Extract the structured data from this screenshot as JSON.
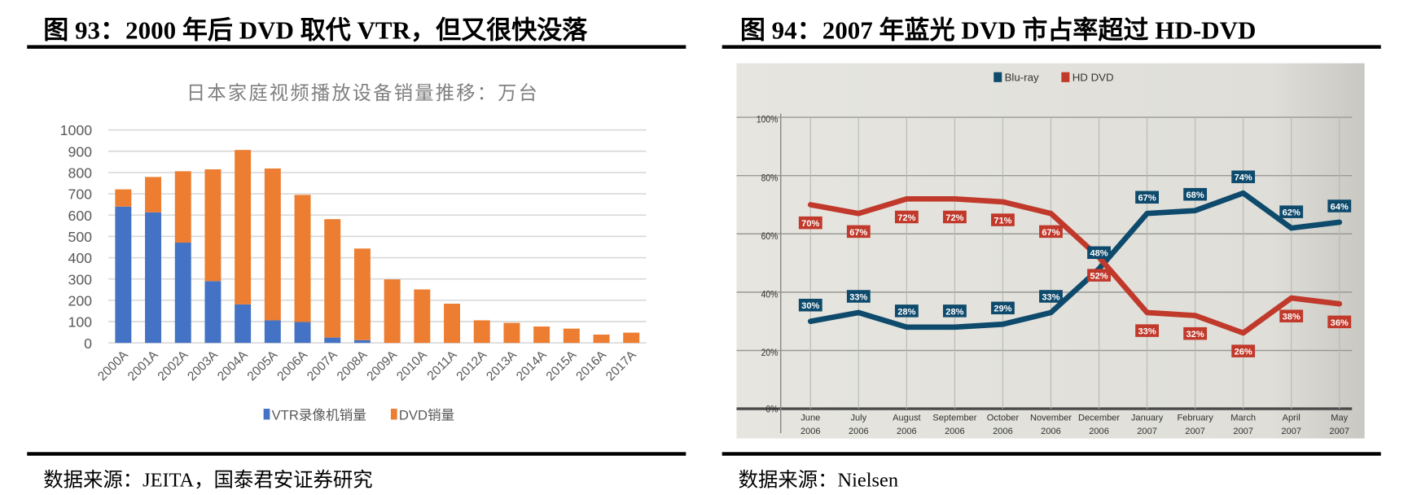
{
  "left_figure": {
    "title": "图 93：2000 年后 DVD 取代 VTR，但又很快没落",
    "source": "数据来源：JEITA，国泰君安证券研究"
  },
  "right_figure": {
    "title": "图 94：2007 年蓝光 DVD 市占率超过 HD-DVD",
    "source": "数据来源：Nielsen"
  },
  "chart_data": [
    {
      "type": "bar",
      "stacked": true,
      "title": "日本家庭视频播放设备销量推移：万台",
      "categories": [
        "2000A",
        "2001A",
        "2002A",
        "2003A",
        "2004A",
        "2005A",
        "2006A",
        "2007A",
        "2008A",
        "2009A",
        "2010A",
        "2011A",
        "2012A",
        "2013A",
        "2014A",
        "2015A",
        "2016A",
        "2017A"
      ],
      "series": [
        {
          "name": "VTR录像机销量",
          "color": "#4472c4",
          "values": [
            640,
            613,
            471,
            290,
            181,
            106,
            98,
            25,
            13,
            0,
            0,
            0,
            0,
            0,
            0,
            0,
            0,
            0
          ]
        },
        {
          "name": "DVD销量",
          "color": "#ed7d31",
          "values": [
            81,
            166,
            335,
            525,
            725,
            713,
            597,
            556,
            430,
            298,
            251,
            184,
            106,
            94,
            77,
            67,
            39,
            48
          ]
        }
      ],
      "ylim": [
        0,
        1000
      ],
      "yticks": [
        "0",
        "100",
        "200",
        "300",
        "400",
        "500",
        "600",
        "700",
        "800",
        "900",
        "1000"
      ],
      "grid": true,
      "legend": "bottom"
    },
    {
      "type": "line",
      "categories": [
        [
          "June",
          "2006"
        ],
        [
          "July",
          "2006"
        ],
        [
          "August",
          "2006"
        ],
        [
          "September",
          "2006"
        ],
        [
          "October",
          "2006"
        ],
        [
          "November",
          "2006"
        ],
        [
          "December",
          "2006"
        ],
        [
          "January",
          "2007"
        ],
        [
          "February",
          "2007"
        ],
        [
          "March",
          "2007"
        ],
        [
          "April",
          "2007"
        ],
        [
          "May",
          "2007"
        ]
      ],
      "series": [
        {
          "name": "Blu-ray",
          "color": "#0e4a6c",
          "values": [
            30,
            33,
            28,
            28,
            29,
            33,
            48,
            67,
            68,
            74,
            62,
            64
          ]
        },
        {
          "name": "HD DVD",
          "color": "#c0392b",
          "values": [
            70,
            67,
            72,
            72,
            71,
            67,
            52,
            33,
            32,
            26,
            38,
            36
          ]
        }
      ],
      "ylim": [
        0,
        100
      ],
      "yticks": [
        "0%",
        "20%",
        "40%",
        "60%",
        "80%",
        "100%"
      ],
      "value_suffix": "%",
      "grid": true,
      "legend": "top"
    }
  ]
}
